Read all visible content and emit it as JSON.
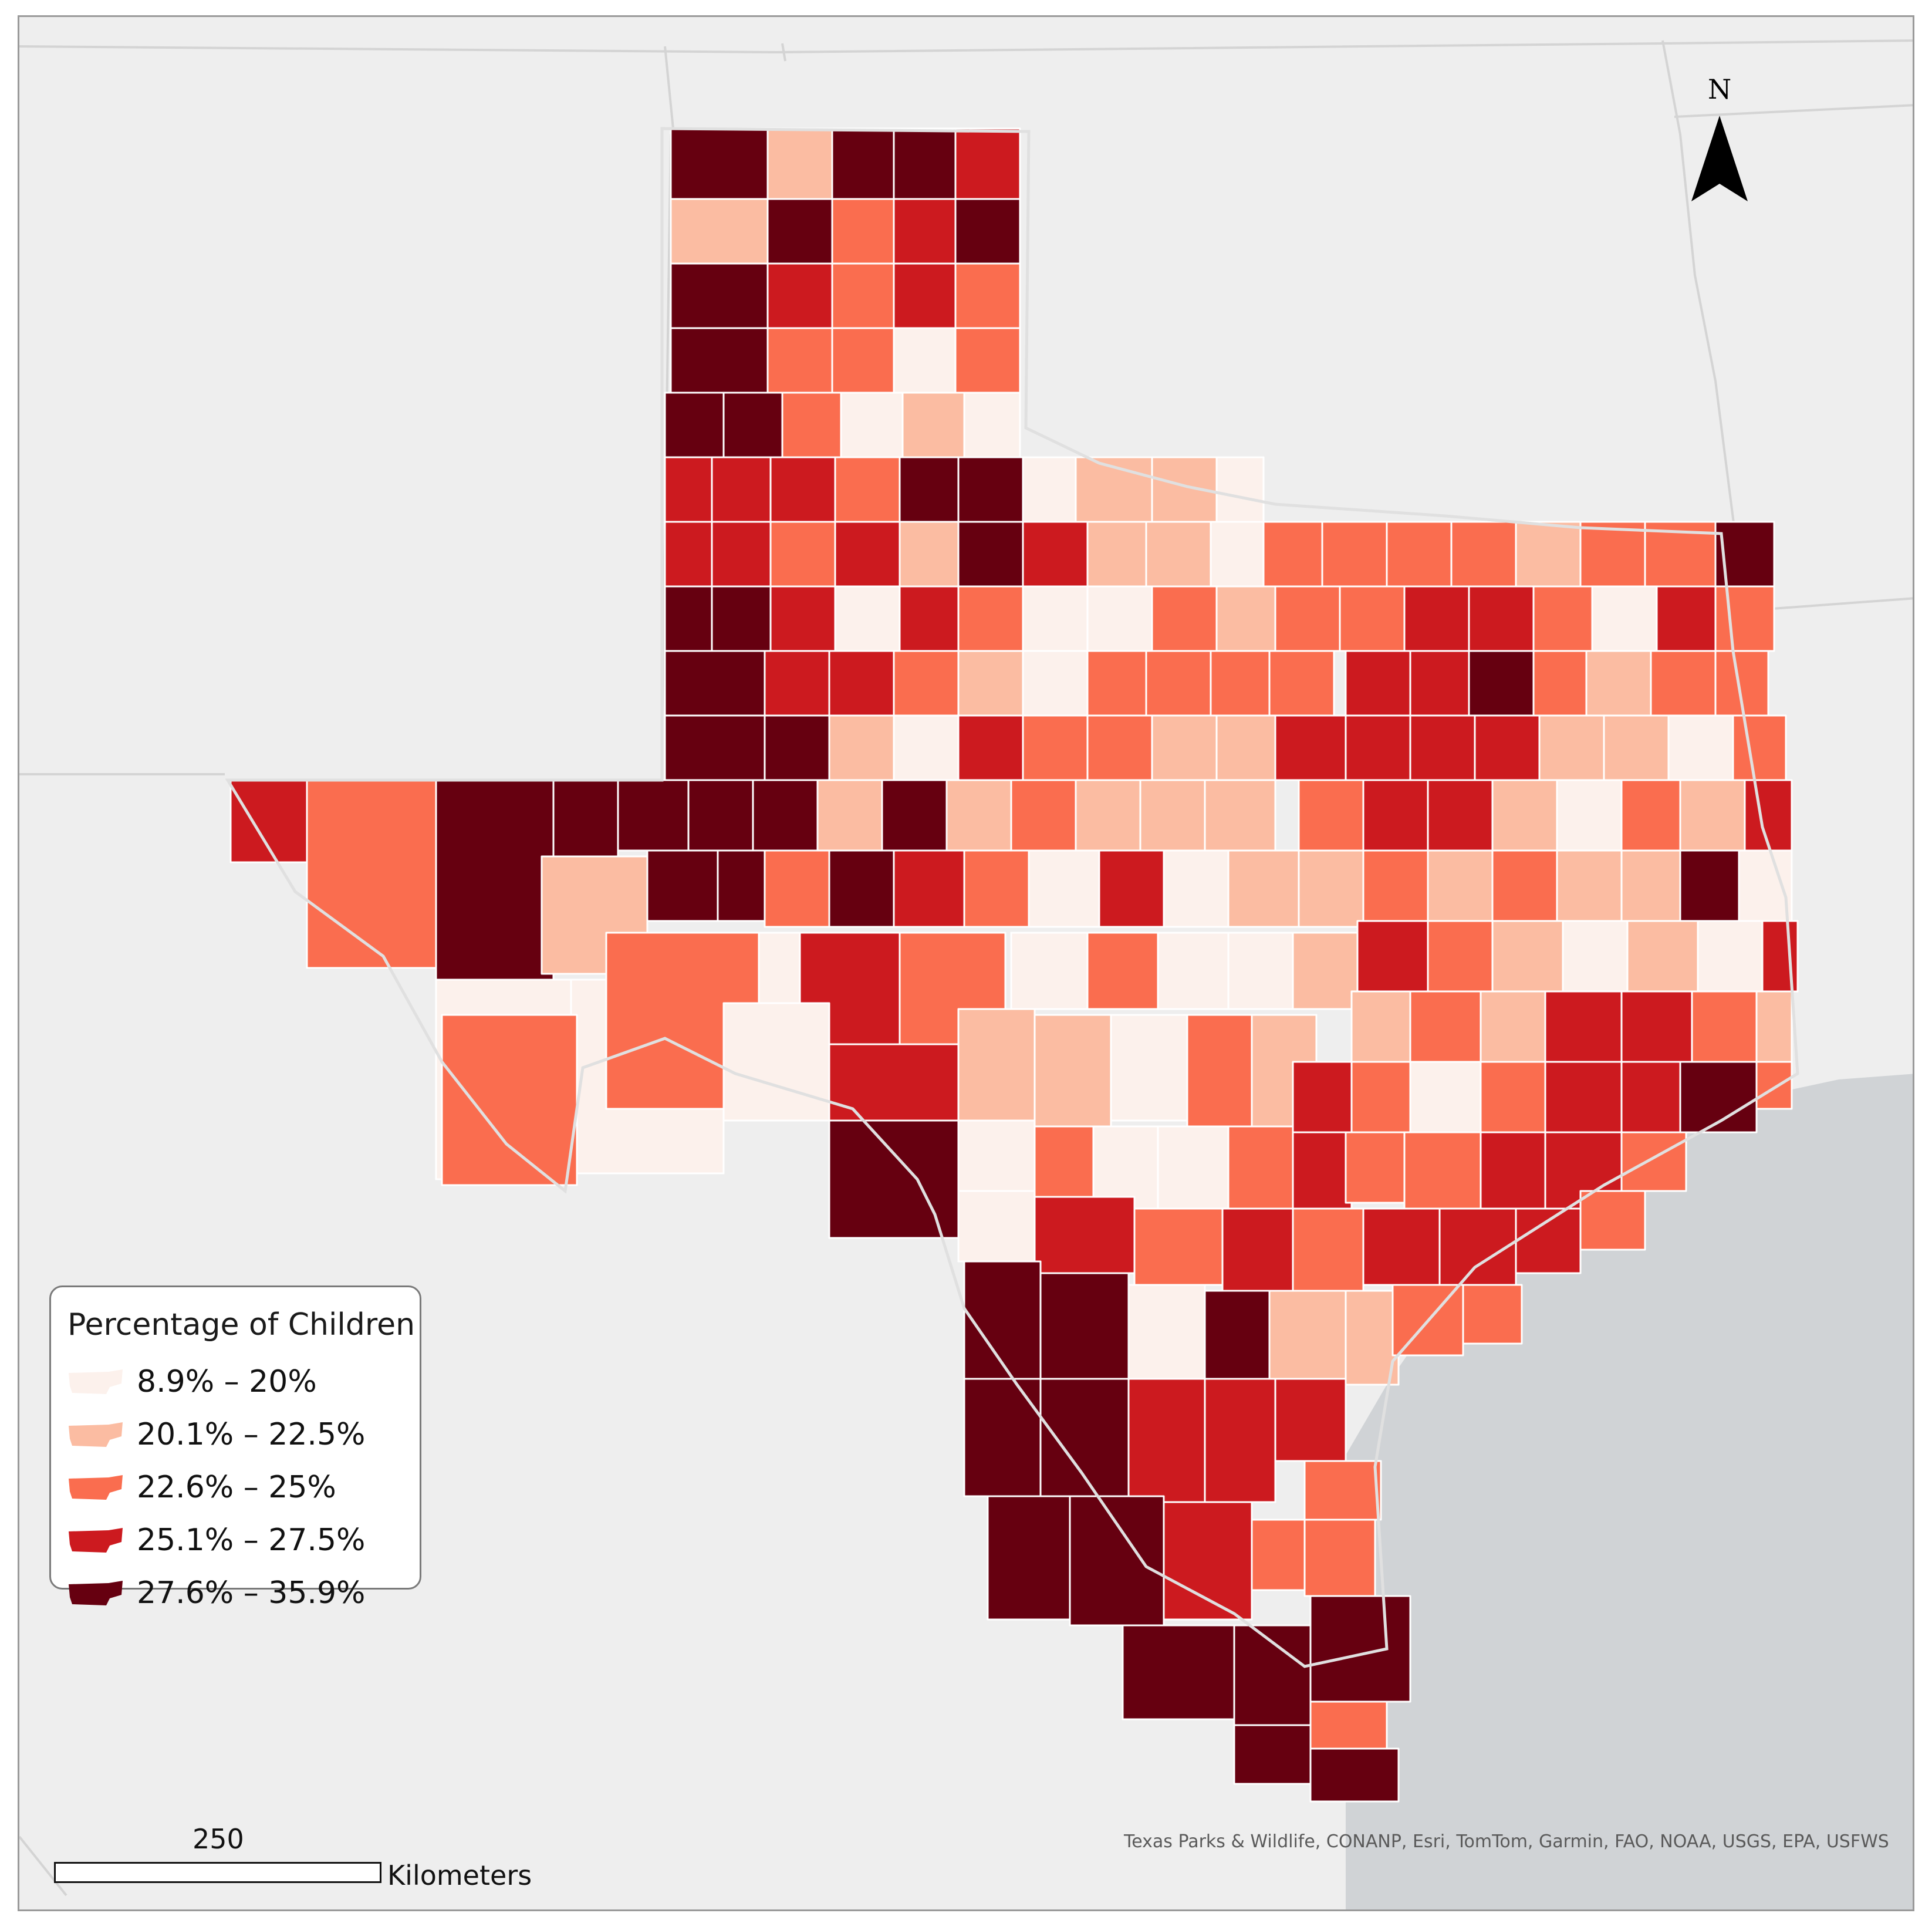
{
  "map": {
    "legend": {
      "title": "Percentage of Children",
      "classes": [
        {
          "label": "8.9% – 20%",
          "color": "#fcf1ec"
        },
        {
          "label": "20.1% – 22.5%",
          "color": "#fbbca2"
        },
        {
          "label": "22.6% – 25%",
          "color": "#fa6d4f"
        },
        {
          "label": "25.1% – 27.5%",
          "color": "#cc1a1f"
        },
        {
          "label": "27.6% – 35.9%",
          "color": "#660010"
        }
      ]
    },
    "north_label": "N",
    "scale_bar": {
      "value": "250",
      "unit": "Kilometers"
    },
    "attribution": "Texas Parks & Wildlife, CONANP, Esri, TomTom, Garmin, FAO, NOAA, USGS, EPA, USFWS",
    "colors": {
      "land_outside": "#eeeeee",
      "water": "#d0d3d6",
      "county_border": "#ffffff"
    }
  }
}
